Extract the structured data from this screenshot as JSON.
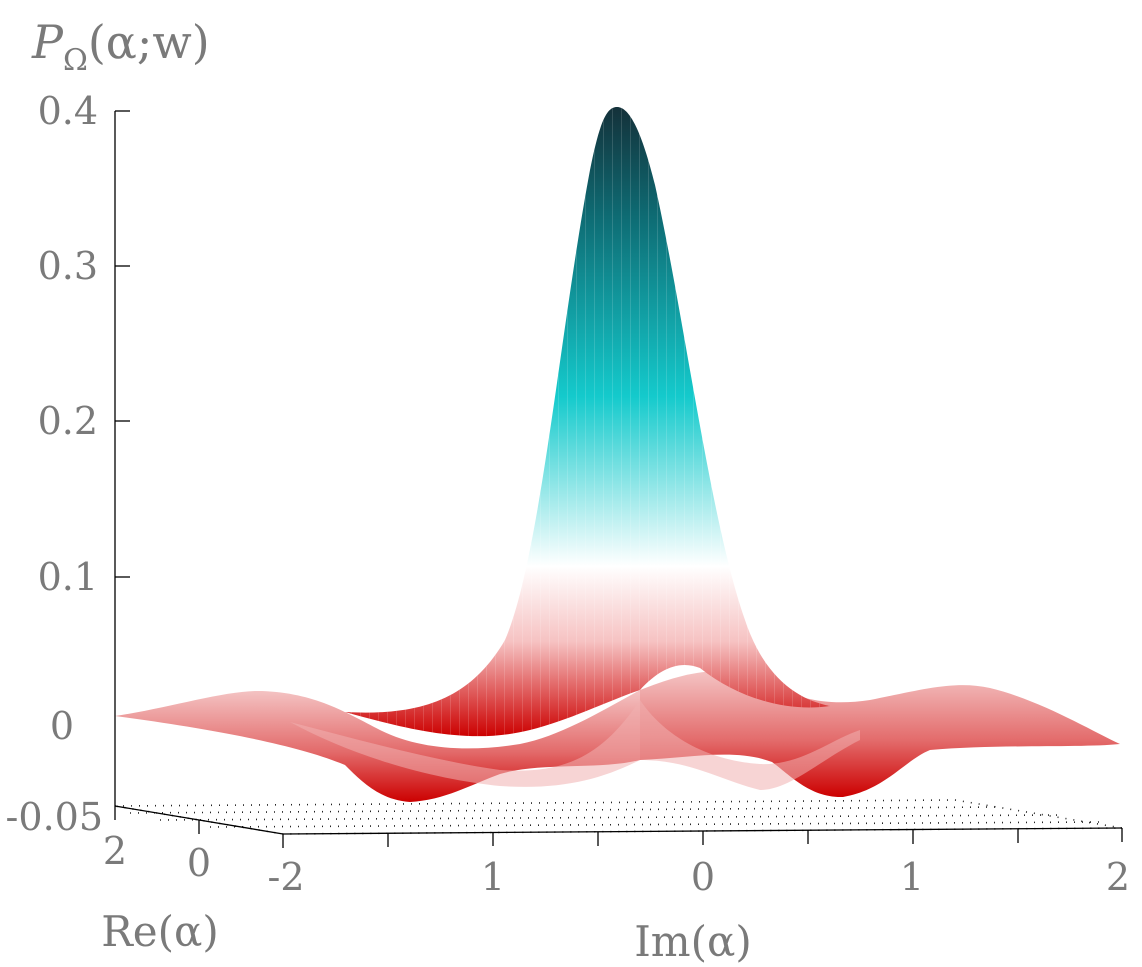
{
  "chart_data": {
    "type": "surface",
    "title": "",
    "zlabel": {
      "symbol": "P",
      "subscript": "Ω",
      "rest": "(α;w)"
    },
    "xlabel": "Im(α)",
    "ylabel": "Re(α)",
    "xlim": [
      -2,
      2
    ],
    "ylim": [
      -2,
      2
    ],
    "zlim": [
      -0.05,
      0.4
    ],
    "z_ticks": [
      "0.4",
      "0.3",
      "0.2",
      "0.1",
      "0",
      "-0.05"
    ],
    "im_ticks": [
      "-2",
      "1",
      "0",
      "1",
      "2"
    ],
    "re_ticks": [
      "2",
      "0"
    ],
    "peak_value": 0.4,
    "min_value": -0.05,
    "colormap": [
      "#cc0000",
      "#f4bcbc",
      "#ffffff",
      "#12cccc",
      "#0e5f66",
      "#14313a"
    ],
    "grid": false
  }
}
